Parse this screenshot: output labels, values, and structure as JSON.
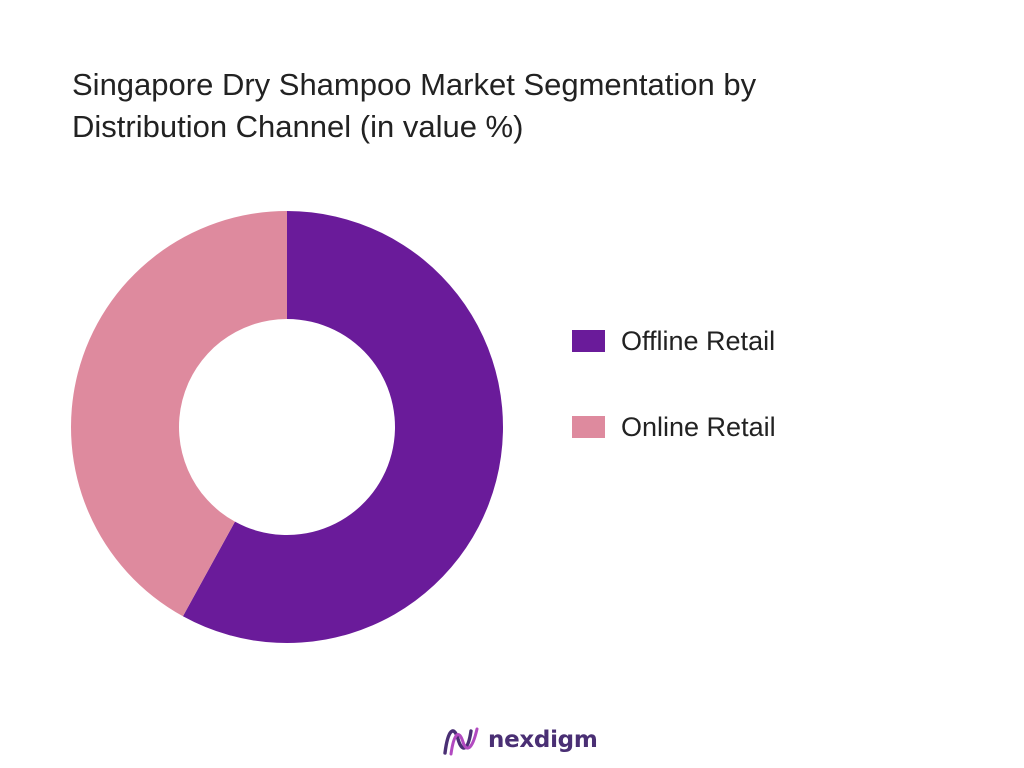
{
  "chart_data": {
    "type": "pie",
    "style": "donut",
    "title": "Singapore Dry Shampoo Market Segmentation by Distribution Channel (in value %)",
    "title_lines": [
      "Singapore Dry Shampoo Market Segmentation by",
      "Distribution Channel (in value %)"
    ],
    "categories": [
      "Offline Retail",
      "Online Retail"
    ],
    "values": [
      58,
      42
    ],
    "unit": "%",
    "colors": [
      "#6a1b9a",
      "#de8a9e"
    ],
    "legend_position": "right",
    "start_angle": "top",
    "direction": "clockwise"
  },
  "legend": {
    "items": [
      {
        "label": "Offline Retail",
        "color": "#6a1b9a"
      },
      {
        "label": "Online Retail",
        "color": "#de8a9e"
      }
    ]
  },
  "branding": {
    "logo_text": "nexdigm",
    "logo_icon": "wave-logo-icon",
    "logo_color": "#4a2f74",
    "logo_accent": "#b24ac0"
  }
}
